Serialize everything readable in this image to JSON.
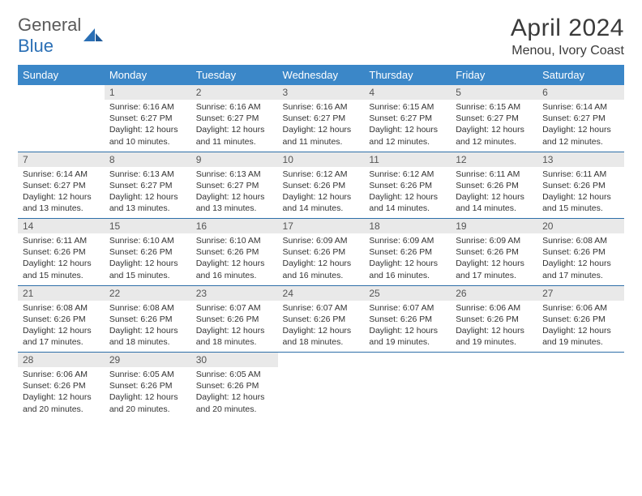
{
  "brand": {
    "name_part1": "General",
    "name_part2": "Blue"
  },
  "colors": {
    "header_bg": "#3b87c8",
    "header_text": "#ffffff",
    "daynum_bg": "#e9e9e9",
    "daynum_text": "#555555",
    "body_text": "#333333",
    "rule": "#2e6fa8",
    "logo_gray": "#5a5a5a",
    "logo_blue": "#2a6fb5"
  },
  "title": "April 2024",
  "location": "Menou, Ivory Coast",
  "dow": [
    "Sunday",
    "Monday",
    "Tuesday",
    "Wednesday",
    "Thursday",
    "Friday",
    "Saturday"
  ],
  "typography": {
    "title_pt": 30,
    "location_pt": 16,
    "dow_pt": 13,
    "daynum_pt": 12,
    "body_pt": 10.5
  },
  "weeks": [
    [
      {
        "n": "",
        "sr": "",
        "ss": "",
        "dl": ""
      },
      {
        "n": "1",
        "sr": "Sunrise: 6:16 AM",
        "ss": "Sunset: 6:27 PM",
        "dl": "Daylight: 12 hours and 10 minutes."
      },
      {
        "n": "2",
        "sr": "Sunrise: 6:16 AM",
        "ss": "Sunset: 6:27 PM",
        "dl": "Daylight: 12 hours and 11 minutes."
      },
      {
        "n": "3",
        "sr": "Sunrise: 6:16 AM",
        "ss": "Sunset: 6:27 PM",
        "dl": "Daylight: 12 hours and 11 minutes."
      },
      {
        "n": "4",
        "sr": "Sunrise: 6:15 AM",
        "ss": "Sunset: 6:27 PM",
        "dl": "Daylight: 12 hours and 12 minutes."
      },
      {
        "n": "5",
        "sr": "Sunrise: 6:15 AM",
        "ss": "Sunset: 6:27 PM",
        "dl": "Daylight: 12 hours and 12 minutes."
      },
      {
        "n": "6",
        "sr": "Sunrise: 6:14 AM",
        "ss": "Sunset: 6:27 PM",
        "dl": "Daylight: 12 hours and 12 minutes."
      }
    ],
    [
      {
        "n": "7",
        "sr": "Sunrise: 6:14 AM",
        "ss": "Sunset: 6:27 PM",
        "dl": "Daylight: 12 hours and 13 minutes."
      },
      {
        "n": "8",
        "sr": "Sunrise: 6:13 AM",
        "ss": "Sunset: 6:27 PM",
        "dl": "Daylight: 12 hours and 13 minutes."
      },
      {
        "n": "9",
        "sr": "Sunrise: 6:13 AM",
        "ss": "Sunset: 6:27 PM",
        "dl": "Daylight: 12 hours and 13 minutes."
      },
      {
        "n": "10",
        "sr": "Sunrise: 6:12 AM",
        "ss": "Sunset: 6:26 PM",
        "dl": "Daylight: 12 hours and 14 minutes."
      },
      {
        "n": "11",
        "sr": "Sunrise: 6:12 AM",
        "ss": "Sunset: 6:26 PM",
        "dl": "Daylight: 12 hours and 14 minutes."
      },
      {
        "n": "12",
        "sr": "Sunrise: 6:11 AM",
        "ss": "Sunset: 6:26 PM",
        "dl": "Daylight: 12 hours and 14 minutes."
      },
      {
        "n": "13",
        "sr": "Sunrise: 6:11 AM",
        "ss": "Sunset: 6:26 PM",
        "dl": "Daylight: 12 hours and 15 minutes."
      }
    ],
    [
      {
        "n": "14",
        "sr": "Sunrise: 6:11 AM",
        "ss": "Sunset: 6:26 PM",
        "dl": "Daylight: 12 hours and 15 minutes."
      },
      {
        "n": "15",
        "sr": "Sunrise: 6:10 AM",
        "ss": "Sunset: 6:26 PM",
        "dl": "Daylight: 12 hours and 15 minutes."
      },
      {
        "n": "16",
        "sr": "Sunrise: 6:10 AM",
        "ss": "Sunset: 6:26 PM",
        "dl": "Daylight: 12 hours and 16 minutes."
      },
      {
        "n": "17",
        "sr": "Sunrise: 6:09 AM",
        "ss": "Sunset: 6:26 PM",
        "dl": "Daylight: 12 hours and 16 minutes."
      },
      {
        "n": "18",
        "sr": "Sunrise: 6:09 AM",
        "ss": "Sunset: 6:26 PM",
        "dl": "Daylight: 12 hours and 16 minutes."
      },
      {
        "n": "19",
        "sr": "Sunrise: 6:09 AM",
        "ss": "Sunset: 6:26 PM",
        "dl": "Daylight: 12 hours and 17 minutes."
      },
      {
        "n": "20",
        "sr": "Sunrise: 6:08 AM",
        "ss": "Sunset: 6:26 PM",
        "dl": "Daylight: 12 hours and 17 minutes."
      }
    ],
    [
      {
        "n": "21",
        "sr": "Sunrise: 6:08 AM",
        "ss": "Sunset: 6:26 PM",
        "dl": "Daylight: 12 hours and 17 minutes."
      },
      {
        "n": "22",
        "sr": "Sunrise: 6:08 AM",
        "ss": "Sunset: 6:26 PM",
        "dl": "Daylight: 12 hours and 18 minutes."
      },
      {
        "n": "23",
        "sr": "Sunrise: 6:07 AM",
        "ss": "Sunset: 6:26 PM",
        "dl": "Daylight: 12 hours and 18 minutes."
      },
      {
        "n": "24",
        "sr": "Sunrise: 6:07 AM",
        "ss": "Sunset: 6:26 PM",
        "dl": "Daylight: 12 hours and 18 minutes."
      },
      {
        "n": "25",
        "sr": "Sunrise: 6:07 AM",
        "ss": "Sunset: 6:26 PM",
        "dl": "Daylight: 12 hours and 19 minutes."
      },
      {
        "n": "26",
        "sr": "Sunrise: 6:06 AM",
        "ss": "Sunset: 6:26 PM",
        "dl": "Daylight: 12 hours and 19 minutes."
      },
      {
        "n": "27",
        "sr": "Sunrise: 6:06 AM",
        "ss": "Sunset: 6:26 PM",
        "dl": "Daylight: 12 hours and 19 minutes."
      }
    ],
    [
      {
        "n": "28",
        "sr": "Sunrise: 6:06 AM",
        "ss": "Sunset: 6:26 PM",
        "dl": "Daylight: 12 hours and 20 minutes."
      },
      {
        "n": "29",
        "sr": "Sunrise: 6:05 AM",
        "ss": "Sunset: 6:26 PM",
        "dl": "Daylight: 12 hours and 20 minutes."
      },
      {
        "n": "30",
        "sr": "Sunrise: 6:05 AM",
        "ss": "Sunset: 6:26 PM",
        "dl": "Daylight: 12 hours and 20 minutes."
      },
      {
        "n": "",
        "sr": "",
        "ss": "",
        "dl": ""
      },
      {
        "n": "",
        "sr": "",
        "ss": "",
        "dl": ""
      },
      {
        "n": "",
        "sr": "",
        "ss": "",
        "dl": ""
      },
      {
        "n": "",
        "sr": "",
        "ss": "",
        "dl": ""
      }
    ]
  ]
}
